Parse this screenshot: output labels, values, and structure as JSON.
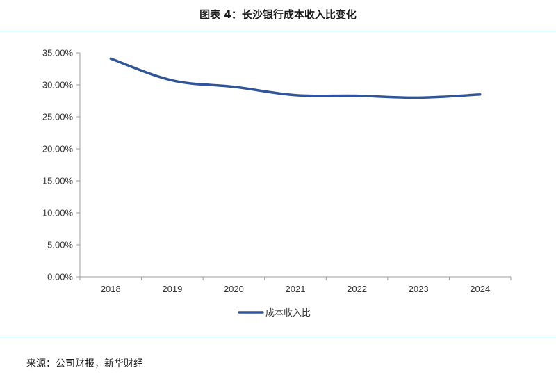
{
  "header": {
    "title": "图表 4：长沙银行成本收入比变化"
  },
  "chart_data": {
    "type": "line",
    "title": "图表 4：长沙银行成本收入比变化",
    "xlabel": "",
    "ylabel": "",
    "x": [
      "2018",
      "2019",
      "2020",
      "2021",
      "2022",
      "2023",
      "2024"
    ],
    "series": [
      {
        "name": "成本收入比",
        "values": [
          34.1,
          30.7,
          29.7,
          28.4,
          28.3,
          28.0,
          28.5
        ],
        "color": "#2f5597"
      }
    ],
    "ylim": [
      0,
      35
    ],
    "yticks": [
      "0.00%",
      "5.00%",
      "10.00%",
      "15.00%",
      "20.00%",
      "25.00%",
      "30.00%",
      "35.00%"
    ],
    "grid": false,
    "legend": "bottom",
    "axis_color": "#9e9e9e"
  },
  "footer": {
    "source": "来源：公司财报，新华财经"
  }
}
